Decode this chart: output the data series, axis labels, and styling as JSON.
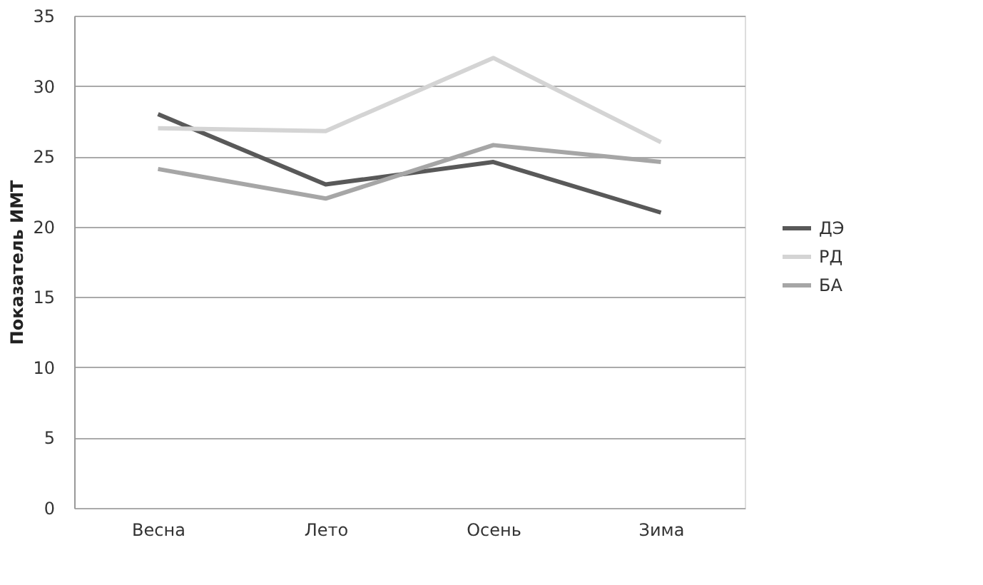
{
  "chart_data": {
    "type": "line",
    "ylabel": "Показатель ИМТ",
    "categories": [
      "Весна",
      "Лето",
      "Осень",
      "Зима"
    ],
    "series": [
      {
        "name": "ДЭ",
        "color": "#595959",
        "values": [
          28.0,
          23.0,
          24.6,
          21.0
        ]
      },
      {
        "name": "РД",
        "color": "#d4d4d4",
        "values": [
          27.0,
          26.8,
          32.0,
          26.0
        ]
      },
      {
        "name": "БА",
        "color": "#a6a6a6",
        "values": [
          24.1,
          22.0,
          25.8,
          24.6
        ]
      }
    ],
    "ylim": [
      0,
      35
    ],
    "yticks": [
      0,
      5,
      10,
      15,
      20,
      25,
      30,
      35
    ],
    "grid": "y",
    "legend": "right",
    "marker": "none",
    "line_style": "solid"
  }
}
